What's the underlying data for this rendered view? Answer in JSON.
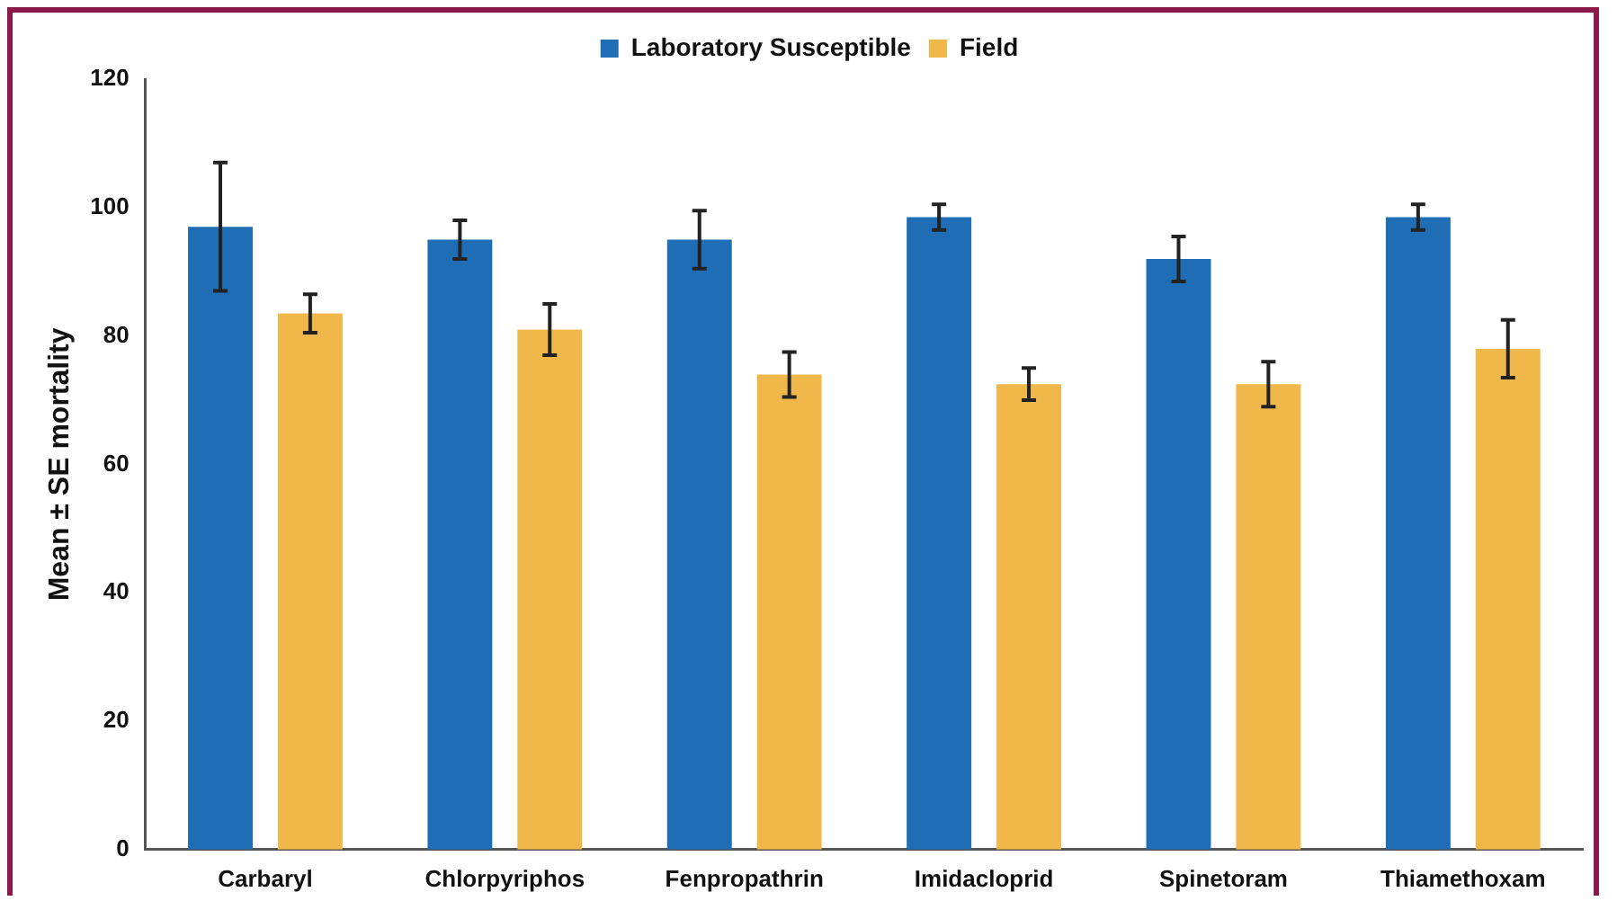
{
  "chart_data": {
    "type": "bar",
    "ylabel": "Mean ± SE mortality",
    "categories": [
      "Carbaryl",
      "Chlorpyriphos",
      "Fenpropathrin",
      "Imidacloprid",
      "Spinetoram",
      "Thiamethoxam"
    ],
    "series": [
      {
        "name": "Laboratory Susceptible",
        "color": "#1f6db5",
        "values": [
          97,
          95,
          95,
          98.5,
          92,
          98.5
        ],
        "errors": [
          10,
          3,
          4.5,
          2,
          3.5,
          2
        ]
      },
      {
        "name": "Field",
        "color": "#f0b84a",
        "values": [
          83.5,
          81,
          74,
          72.5,
          72.5,
          78
        ],
        "errors": [
          3,
          4,
          3.5,
          2.5,
          3.5,
          4.5
        ]
      }
    ],
    "ylim": [
      0,
      120
    ],
    "yticks": [
      0,
      20,
      40,
      60,
      80,
      100,
      120
    ],
    "grid": false,
    "legend": "top"
  }
}
